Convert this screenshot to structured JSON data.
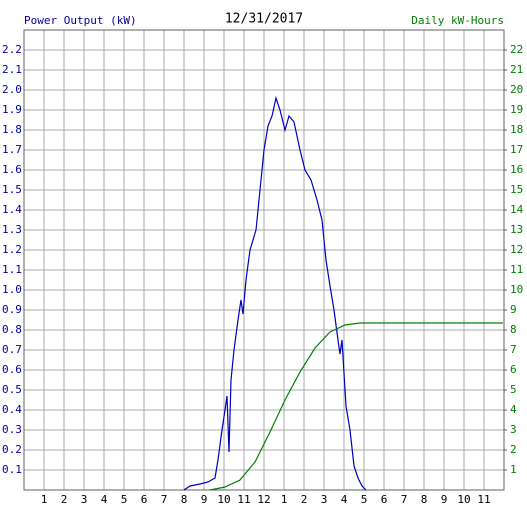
{
  "chart_data": {
    "type": "line",
    "title": "12/31/2017",
    "ylabel": "Power Output (kW)",
    "y2label": "Daily kW-Hours",
    "xlim": [
      0,
      24
    ],
    "xticks": [
      1,
      2,
      3,
      4,
      5,
      6,
      7,
      8,
      9,
      10,
      11,
      12,
      {
        "value": 13,
        "label": "1"
      },
      {
        "value": 14,
        "label": "2"
      },
      {
        "value": 15,
        "label": "3"
      },
      {
        "value": 16,
        "label": "4"
      },
      {
        "value": 17,
        "label": "5"
      },
      {
        "value": 18,
        "label": "6"
      },
      {
        "value": 19,
        "label": "7"
      },
      {
        "value": 20,
        "label": "8"
      },
      {
        "value": 21,
        "label": "9"
      },
      {
        "value": 22,
        "label": "10"
      },
      {
        "value": 23,
        "label": "11"
      }
    ],
    "ylim": [
      0,
      2.3
    ],
    "yticks": [
      0.1,
      0.2,
      0.3,
      0.4,
      0.5,
      0.6,
      0.7,
      0.8,
      0.9,
      {
        "value": 1,
        "label": "1.0"
      },
      1.1,
      1.2,
      1.3,
      1.4,
      1.5,
      1.6,
      1.7,
      1.8,
      1.9,
      {
        "value": 2,
        "label": "2.0"
      },
      2.1,
      2.2
    ],
    "y2lim": [
      0,
      23
    ],
    "y2ticks": [
      1,
      2,
      3,
      4,
      5,
      6,
      7,
      8,
      9,
      10,
      11,
      12,
      13,
      14,
      15,
      16,
      17,
      18,
      19,
      20,
      21,
      22
    ],
    "grid": true,
    "series": [
      {
        "color": "#0000c0",
        "x": [
          8.0,
          8.3,
          8.8,
          9.2,
          9.55,
          9.7,
          9.9,
          10.05,
          10.15,
          10.25,
          10.35,
          10.5,
          10.7,
          10.85,
          10.95,
          11.1,
          11.3,
          11.6,
          11.8,
          12.0,
          12.2,
          12.4,
          12.6,
          12.8,
          13.05,
          13.25,
          13.5,
          13.8,
          14.05,
          14.35,
          14.65,
          14.9,
          15.1,
          15.3,
          15.5,
          15.7,
          15.8,
          15.9,
          16.1,
          16.3,
          16.5,
          16.7,
          16.9,
          17.1
        ],
        "values": [
          0,
          0.02,
          0.03,
          0.04,
          0.06,
          0.15,
          0.3,
          0.4,
          0.47,
          0.19,
          0.55,
          0.7,
          0.85,
          0.95,
          0.88,
          1.05,
          1.2,
          1.3,
          1.5,
          1.7,
          1.82,
          1.87,
          1.96,
          1.9,
          1.8,
          1.87,
          1.84,
          1.7,
          1.6,
          1.55,
          1.45,
          1.35,
          1.15,
          1.02,
          0.9,
          0.75,
          0.68,
          0.75,
          0.42,
          0.3,
          0.12,
          0.06,
          0.02,
          0
        ]
      },
      {
        "color": "#008000",
        "axis": "y2",
        "x": [
          9.3,
          10.05,
          10.8,
          11.55,
          12.3,
          13.05,
          13.8,
          14.55,
          15.3,
          16.05,
          16.8,
          23.95
        ],
        "values": [
          0,
          0.15,
          0.5,
          1.4,
          2.9,
          4.5,
          5.9,
          7.1,
          7.9,
          8.25,
          8.35,
          8.35
        ]
      }
    ]
  }
}
